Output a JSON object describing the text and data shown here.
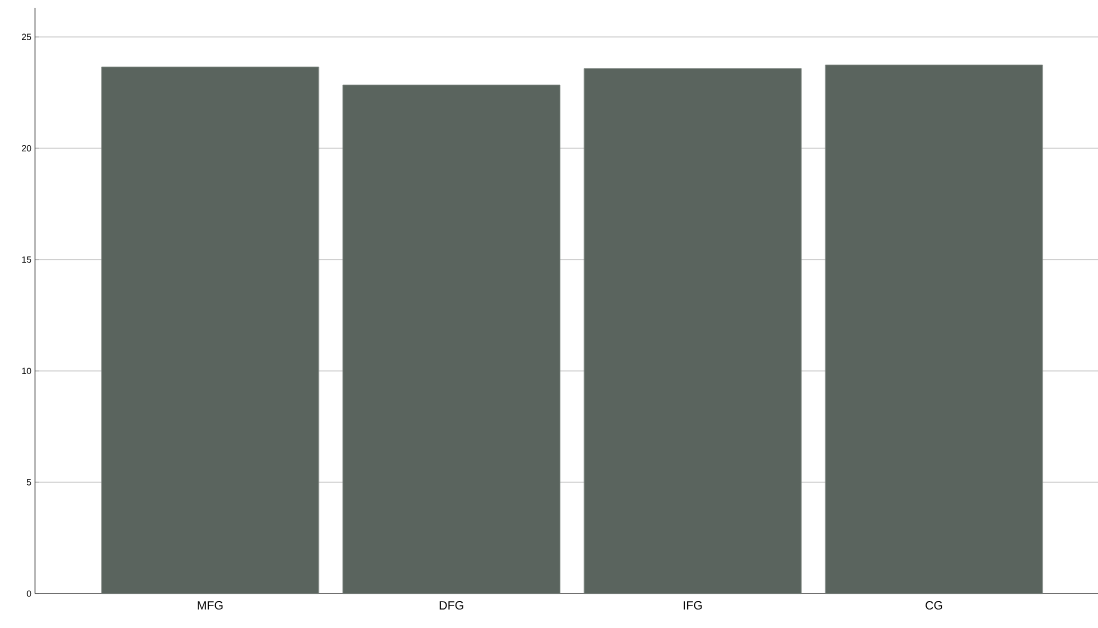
{
  "chart_data": {
    "type": "bar",
    "categories": [
      "MFG",
      "DFG",
      "IFG",
      "CG"
    ],
    "values": [
      23.65,
      22.84,
      23.58,
      23.74
    ],
    "color": "#5a645e",
    "ylim": [
      0,
      26.3
    ],
    "yticks": [
      0,
      5,
      10,
      15,
      20,
      25
    ],
    "grid": "y"
  }
}
